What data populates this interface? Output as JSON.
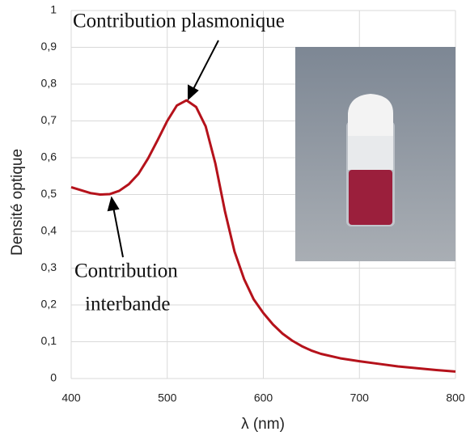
{
  "chart_data": {
    "type": "line",
    "x_label": "λ (nm)",
    "y_label": "Densité optique",
    "annotations": [
      "Contribution plasmonique",
      "Contribution",
      "interbande"
    ],
    "x": [
      400,
      410,
      420,
      430,
      440,
      450,
      460,
      470,
      480,
      490,
      500,
      510,
      520,
      530,
      540,
      550,
      560,
      570,
      580,
      590,
      600,
      610,
      620,
      630,
      640,
      650,
      660,
      680,
      700,
      720,
      740,
      760,
      780,
      800
    ],
    "series": [
      {
        "name": "Densité optique",
        "color": "#b5121b",
        "values": [
          0.52,
          0.512,
          0.504,
          0.5,
          0.501,
          0.51,
          0.528,
          0.556,
          0.598,
          0.648,
          0.7,
          0.742,
          0.756,
          0.738,
          0.685,
          0.585,
          0.455,
          0.345,
          0.27,
          0.215,
          0.178,
          0.147,
          0.122,
          0.103,
          0.088,
          0.076,
          0.067,
          0.055,
          0.047,
          0.04,
          0.033,
          0.028,
          0.023,
          0.019
        ]
      }
    ],
    "xlim": [
      400,
      800
    ],
    "xticks": [
      400,
      500,
      600,
      700,
      800
    ],
    "ylim": [
      0,
      1
    ],
    "yticks": [
      0,
      {
        "value": 0.1,
        "label": "0,1"
      },
      {
        "value": 0.2,
        "label": "0,2"
      },
      {
        "value": 0.3,
        "label": "0,3"
      },
      {
        "value": 0.4,
        "label": "0,4"
      },
      {
        "value": 0.5,
        "label": "0,5"
      },
      {
        "value": 0.6,
        "label": "0,6"
      },
      {
        "value": 0.7,
        "label": "0,7"
      },
      {
        "value": 0.8,
        "label": "0,8"
      },
      {
        "value": 0.9,
        "label": "0,9"
      },
      1
    ],
    "grid": true
  }
}
